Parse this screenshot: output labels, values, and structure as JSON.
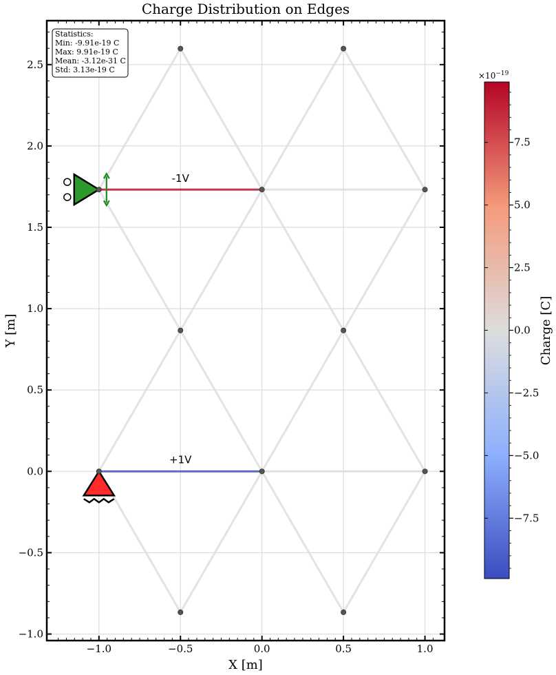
{
  "chart_data": {
    "type": "network",
    "title": "Charge Distribution on Edges",
    "xlabel": "X [m]",
    "ylabel": "Y [m]",
    "xlim": [
      -1.32,
      1.12
    ],
    "ylim": [
      -1.04,
      2.77
    ],
    "xticks": [
      -1.0,
      -0.5,
      0.0,
      0.5,
      1.0
    ],
    "xtick_labels": [
      "−1.0",
      "−0.5",
      "0.0",
      "0.5",
      "1.0"
    ],
    "yticks": [
      -1.0,
      -0.5,
      0.0,
      0.5,
      1.0,
      1.5,
      2.0,
      2.5
    ],
    "ytick_labels": [
      "−1.0",
      "−0.5",
      "0.0",
      "0.5",
      "1.0",
      "1.5",
      "2.0",
      "2.5"
    ],
    "grid": true,
    "nodes": [
      {
        "x": -1.0,
        "y": 0.0
      },
      {
        "x": 0.0,
        "y": 0.0
      },
      {
        "x": 1.0,
        "y": 0.0
      },
      {
        "x": -0.5,
        "y": 0.866
      },
      {
        "x": 0.5,
        "y": 0.866
      },
      {
        "x": -1.0,
        "y": 1.732
      },
      {
        "x": 0.0,
        "y": 1.732
      },
      {
        "x": 1.0,
        "y": 1.732
      },
      {
        "x": -0.5,
        "y": 2.598
      },
      {
        "x": 0.5,
        "y": 2.598
      },
      {
        "x": -0.5,
        "y": -0.866
      },
      {
        "x": 0.5,
        "y": -0.866
      }
    ],
    "edges": [
      {
        "from": 0,
        "to": 1,
        "charge": -9.91e-19
      },
      {
        "from": 5,
        "to": 6,
        "charge": 9.91e-19
      },
      {
        "from": 1,
        "to": 2,
        "charge": 0
      },
      {
        "from": 6,
        "to": 7,
        "charge": 0
      },
      {
        "from": 0,
        "to": 3,
        "charge": 0
      },
      {
        "from": 3,
        "to": 1,
        "charge": 0
      },
      {
        "from": 1,
        "to": 4,
        "charge": 0
      },
      {
        "from": 4,
        "to": 2,
        "charge": 0
      },
      {
        "from": 3,
        "to": 5,
        "charge": 0
      },
      {
        "from": 3,
        "to": 6,
        "charge": 0
      },
      {
        "from": 4,
        "to": 6,
        "charge": 0
      },
      {
        "from": 4,
        "to": 7,
        "charge": 0
      },
      {
        "from": 5,
        "to": 8,
        "charge": 0
      },
      {
        "from": 8,
        "to": 6,
        "charge": 0
      },
      {
        "from": 6,
        "to": 9,
        "charge": 0
      },
      {
        "from": 9,
        "to": 7,
        "charge": 0
      },
      {
        "from": 0,
        "to": 10,
        "charge": 0
      },
      {
        "from": 10,
        "to": 1,
        "charge": 0
      },
      {
        "from": 1,
        "to": 11,
        "charge": 0
      },
      {
        "from": 11,
        "to": 2,
        "charge": 0
      }
    ],
    "voltage_labels": [
      {
        "text": "+1V",
        "x": -0.5,
        "y": 0.05
      },
      {
        "text": "-1V",
        "x": -0.5,
        "y": 1.78
      }
    ],
    "supports": [
      {
        "kind": "pinned",
        "node": 0,
        "color": "#ff2a2a"
      },
      {
        "kind": "roller",
        "node": 5,
        "color": "#2e9a2e"
      }
    ],
    "stats": {
      "title": "Statistics:",
      "lines": [
        "Min: -9.91e-19 C",
        "Max: 9.91e-19 C",
        "Mean: -3.12e-31 C",
        "Std: 3.13e-19 C"
      ]
    },
    "colorbar": {
      "label": "Charge [C]",
      "multiplier": "×10",
      "exponent": "−19",
      "range": [
        -9.91e-19,
        9.91e-19
      ],
      "ticks": [
        -7.5,
        -5.0,
        -2.5,
        0.0,
        2.5,
        5.0,
        7.5
      ],
      "tick_labels": [
        "−7.5",
        "−5.0",
        "−2.5",
        "0.0",
        "2.5",
        "5.0",
        "7.5"
      ],
      "cmap": "coolwarm"
    }
  }
}
